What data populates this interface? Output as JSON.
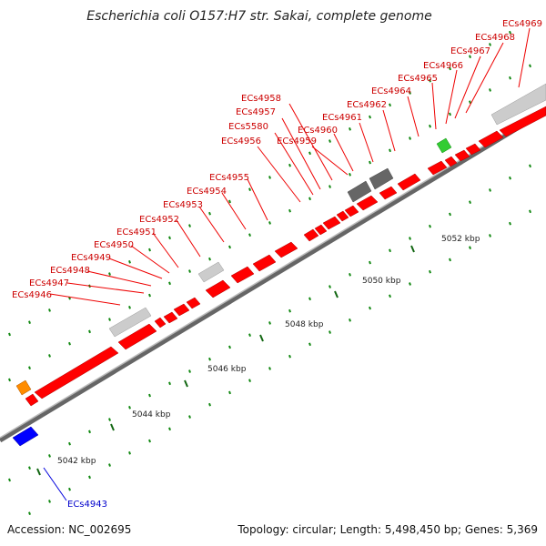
{
  "title": "Escherichia coli O157:H7 str. Sakai, complete genome",
  "footer": {
    "accession": "Accession: NC_002695",
    "summary": "Topology: circular; Length: 5,498,450 bp; Genes: 5,369"
  },
  "colors": {
    "forward_gene": "#ff0000",
    "reverse_gene": "#0000ff",
    "rRNA_like": "#cccccc",
    "dark_feature": "#666666",
    "orange_feature": "#ff8c00",
    "green_feature": "#33cc33",
    "tick": "#116611",
    "backbone": "#9a9a9a",
    "forward_label": "#cc0000",
    "reverse_label": "#0000cc"
  },
  "axis_ticks": [
    "5042 kbp",
    "5044 kbp",
    "5046 kbp",
    "5048 kbp",
    "5050 kbp",
    "5052 kbp"
  ],
  "gene_labels_forward": [
    "ECs4946",
    "ECs4947",
    "ECs4948",
    "ECs4949",
    "ECs4950",
    "ECs4951",
    "ECs4952",
    "ECs4953",
    "ECs4954",
    "ECs4955",
    "ECs4956",
    "ECs5580",
    "ECs4957",
    "ECs4958",
    "ECs4959",
    "ECs4960",
    "ECs4961",
    "ECs4962",
    "ECs4964",
    "ECs4965",
    "ECs4966",
    "ECs4967",
    "ECs4968",
    "ECs4969"
  ],
  "gene_labels_reverse": [
    "ECs4943"
  ]
}
